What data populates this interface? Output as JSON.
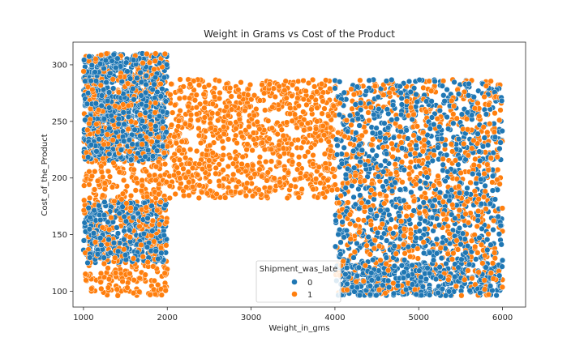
{
  "chart_data": {
    "type": "scatter",
    "title": "Weight in Grams vs Cost of the Product",
    "xlabel": "Weight_in_gms",
    "ylabel": "Cost_of_the_Product",
    "xlim": [
      875,
      6275
    ],
    "ylim": [
      86,
      320
    ],
    "xticks": [
      1000,
      2000,
      3000,
      4000,
      5000,
      6000
    ],
    "yticks": [
      100,
      150,
      200,
      250,
      300
    ],
    "grid": false,
    "legend": {
      "title": "Shipment_was_late",
      "placement": "lower-center",
      "entries": [
        "0",
        "1"
      ]
    },
    "series": [
      {
        "name": "0",
        "color": "#1f77b4",
        "regions": [
          {
            "x": [
              1000,
              2000
            ],
            "y": [
              215,
              310
            ],
            "density": "high"
          },
          {
            "x": [
              1000,
              2000
            ],
            "y": [
              125,
              180
            ],
            "density": "medium"
          },
          {
            "x": [
              4000,
              6000
            ],
            "y": [
              125,
              287
            ],
            "density": "high"
          },
          {
            "x": [
              4000,
              6000
            ],
            "y": [
              96,
              125
            ],
            "density": "medium"
          }
        ]
      },
      {
        "name": "1",
        "color": "#ff7f0e",
        "regions": [
          {
            "x": [
              1000,
              2000
            ],
            "y": [
              96,
              310
            ],
            "density": "high"
          },
          {
            "x": [
              2000,
              4000
            ],
            "y": [
              182,
              287
            ],
            "density": "high"
          },
          {
            "x": [
              4000,
              6000
            ],
            "y": [
              96,
              287
            ],
            "density": "high"
          }
        ]
      }
    ]
  }
}
